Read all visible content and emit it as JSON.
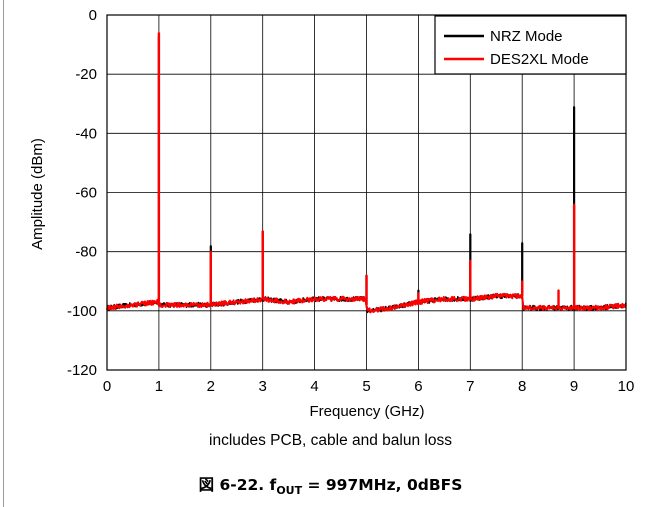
{
  "chart_data": {
    "type": "line",
    "xlabel": "Frequency (GHz)",
    "ylabel": "Amplitude (dBm)",
    "xlim": [
      0,
      10
    ],
    "ylim": [
      -120,
      0
    ],
    "xticks": [
      "0",
      "1",
      "2",
      "3",
      "4",
      "5",
      "6",
      "7",
      "8",
      "9",
      "10"
    ],
    "yticks": [
      "0",
      "-20",
      "-40",
      "-60",
      "-80",
      "-100",
      "-120"
    ],
    "grid": true,
    "legend_position": "top-right",
    "noise_floor": {
      "x": [
        0.0,
        0.5,
        0.98,
        1.02,
        1.5,
        2.0,
        2.5,
        3.0,
        3.5,
        4.0,
        4.5,
        4.98,
        5.02,
        5.5,
        6.0,
        6.5,
        7.0,
        7.5,
        8.0,
        8.02,
        8.5,
        9.0,
        9.5,
        10.0
      ],
      "y": [
        -99,
        -98,
        -97,
        -98,
        -98,
        -98,
        -97,
        -96,
        -97,
        -96,
        -96,
        -96,
        -100,
        -99,
        -97,
        -96,
        -96,
        -95,
        -95,
        -99,
        -99,
        -99,
        -99,
        -98
      ]
    },
    "series": [
      {
        "name": "NRZ Mode",
        "color": "#000000",
        "spurs": [
          {
            "x": 1.0,
            "y": -7
          },
          {
            "x": 2.0,
            "y": -78
          },
          {
            "x": 3.0,
            "y": -73
          },
          {
            "x": 5.0,
            "y": -88
          },
          {
            "x": 6.0,
            "y": -93
          },
          {
            "x": 7.0,
            "y": -74
          },
          {
            "x": 8.0,
            "y": -77
          },
          {
            "x": 9.0,
            "y": -31
          }
        ]
      },
      {
        "name": "DES2XL Mode",
        "color": "#ff0000",
        "spurs": [
          {
            "x": 1.0,
            "y": -6
          },
          {
            "x": 2.0,
            "y": -80
          },
          {
            "x": 3.0,
            "y": -73
          },
          {
            "x": 5.0,
            "y": -88
          },
          {
            "x": 6.0,
            "y": -94
          },
          {
            "x": 7.0,
            "y": -83
          },
          {
            "x": 8.0,
            "y": -90
          },
          {
            "x": 8.7,
            "y": -93
          },
          {
            "x": 9.0,
            "y": -64
          }
        ]
      }
    ]
  },
  "note": "includes PCB, cable and balun loss",
  "caption": {
    "prefix": "図 6-22. f",
    "sub": "OUT",
    "suffix": " = 997MHz, 0dBFS"
  }
}
